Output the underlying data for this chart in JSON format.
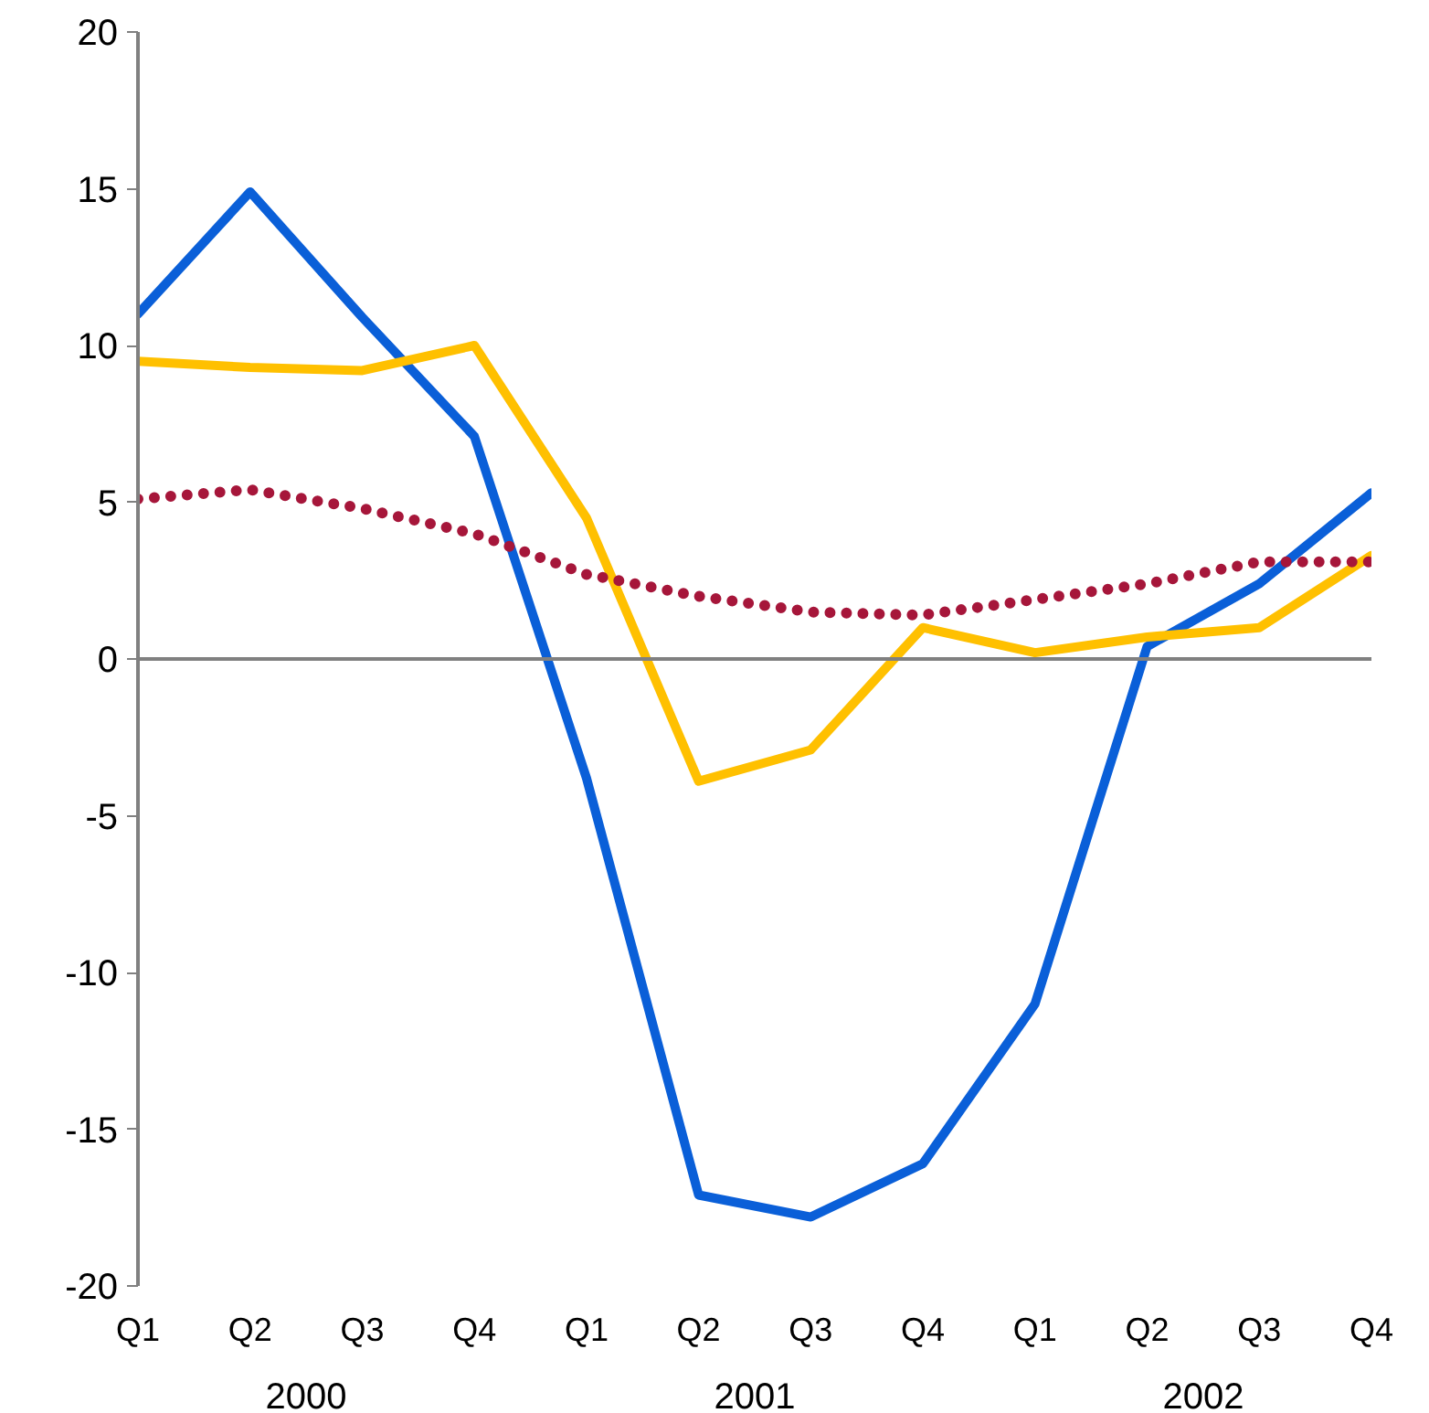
{
  "chart_data": {
    "type": "line",
    "categories": [
      "Q1",
      "Q2",
      "Q3",
      "Q4",
      "Q1",
      "Q2",
      "Q3",
      "Q4",
      "Q1",
      "Q2",
      "Q3",
      "Q4"
    ],
    "annotations": [
      "2000",
      "2001",
      "2002"
    ],
    "series": [
      {
        "color": "#0a5fd8",
        "values": [
          11.0,
          14.9,
          10.9,
          7.1,
          -3.8,
          -17.1,
          -17.8,
          -16.1,
          -11.0,
          0.4,
          2.4,
          5.3
        ]
      },
      {
        "color": "#ffc000",
        "values": [
          9.5,
          9.3,
          9.2,
          10.0,
          4.5,
          -3.9,
          -2.9,
          1.0,
          0.2,
          0.7,
          1.0,
          3.3
        ]
      },
      {
        "color": "#a6163a",
        "line_style": "dotted",
        "values": [
          5.1,
          5.4,
          4.8,
          4.0,
          2.7,
          2.0,
          1.5,
          1.4,
          1.9,
          2.4,
          3.1,
          3.1
        ]
      }
    ],
    "ylim": [
      -20,
      20
    ],
    "yticks": [
      -20,
      -15,
      -10,
      -5,
      0,
      5,
      10,
      15,
      20
    ],
    "ref_lines": [
      {
        "axis": "y",
        "value": 0,
        "color": "#808080"
      }
    ],
    "grid": false
  }
}
